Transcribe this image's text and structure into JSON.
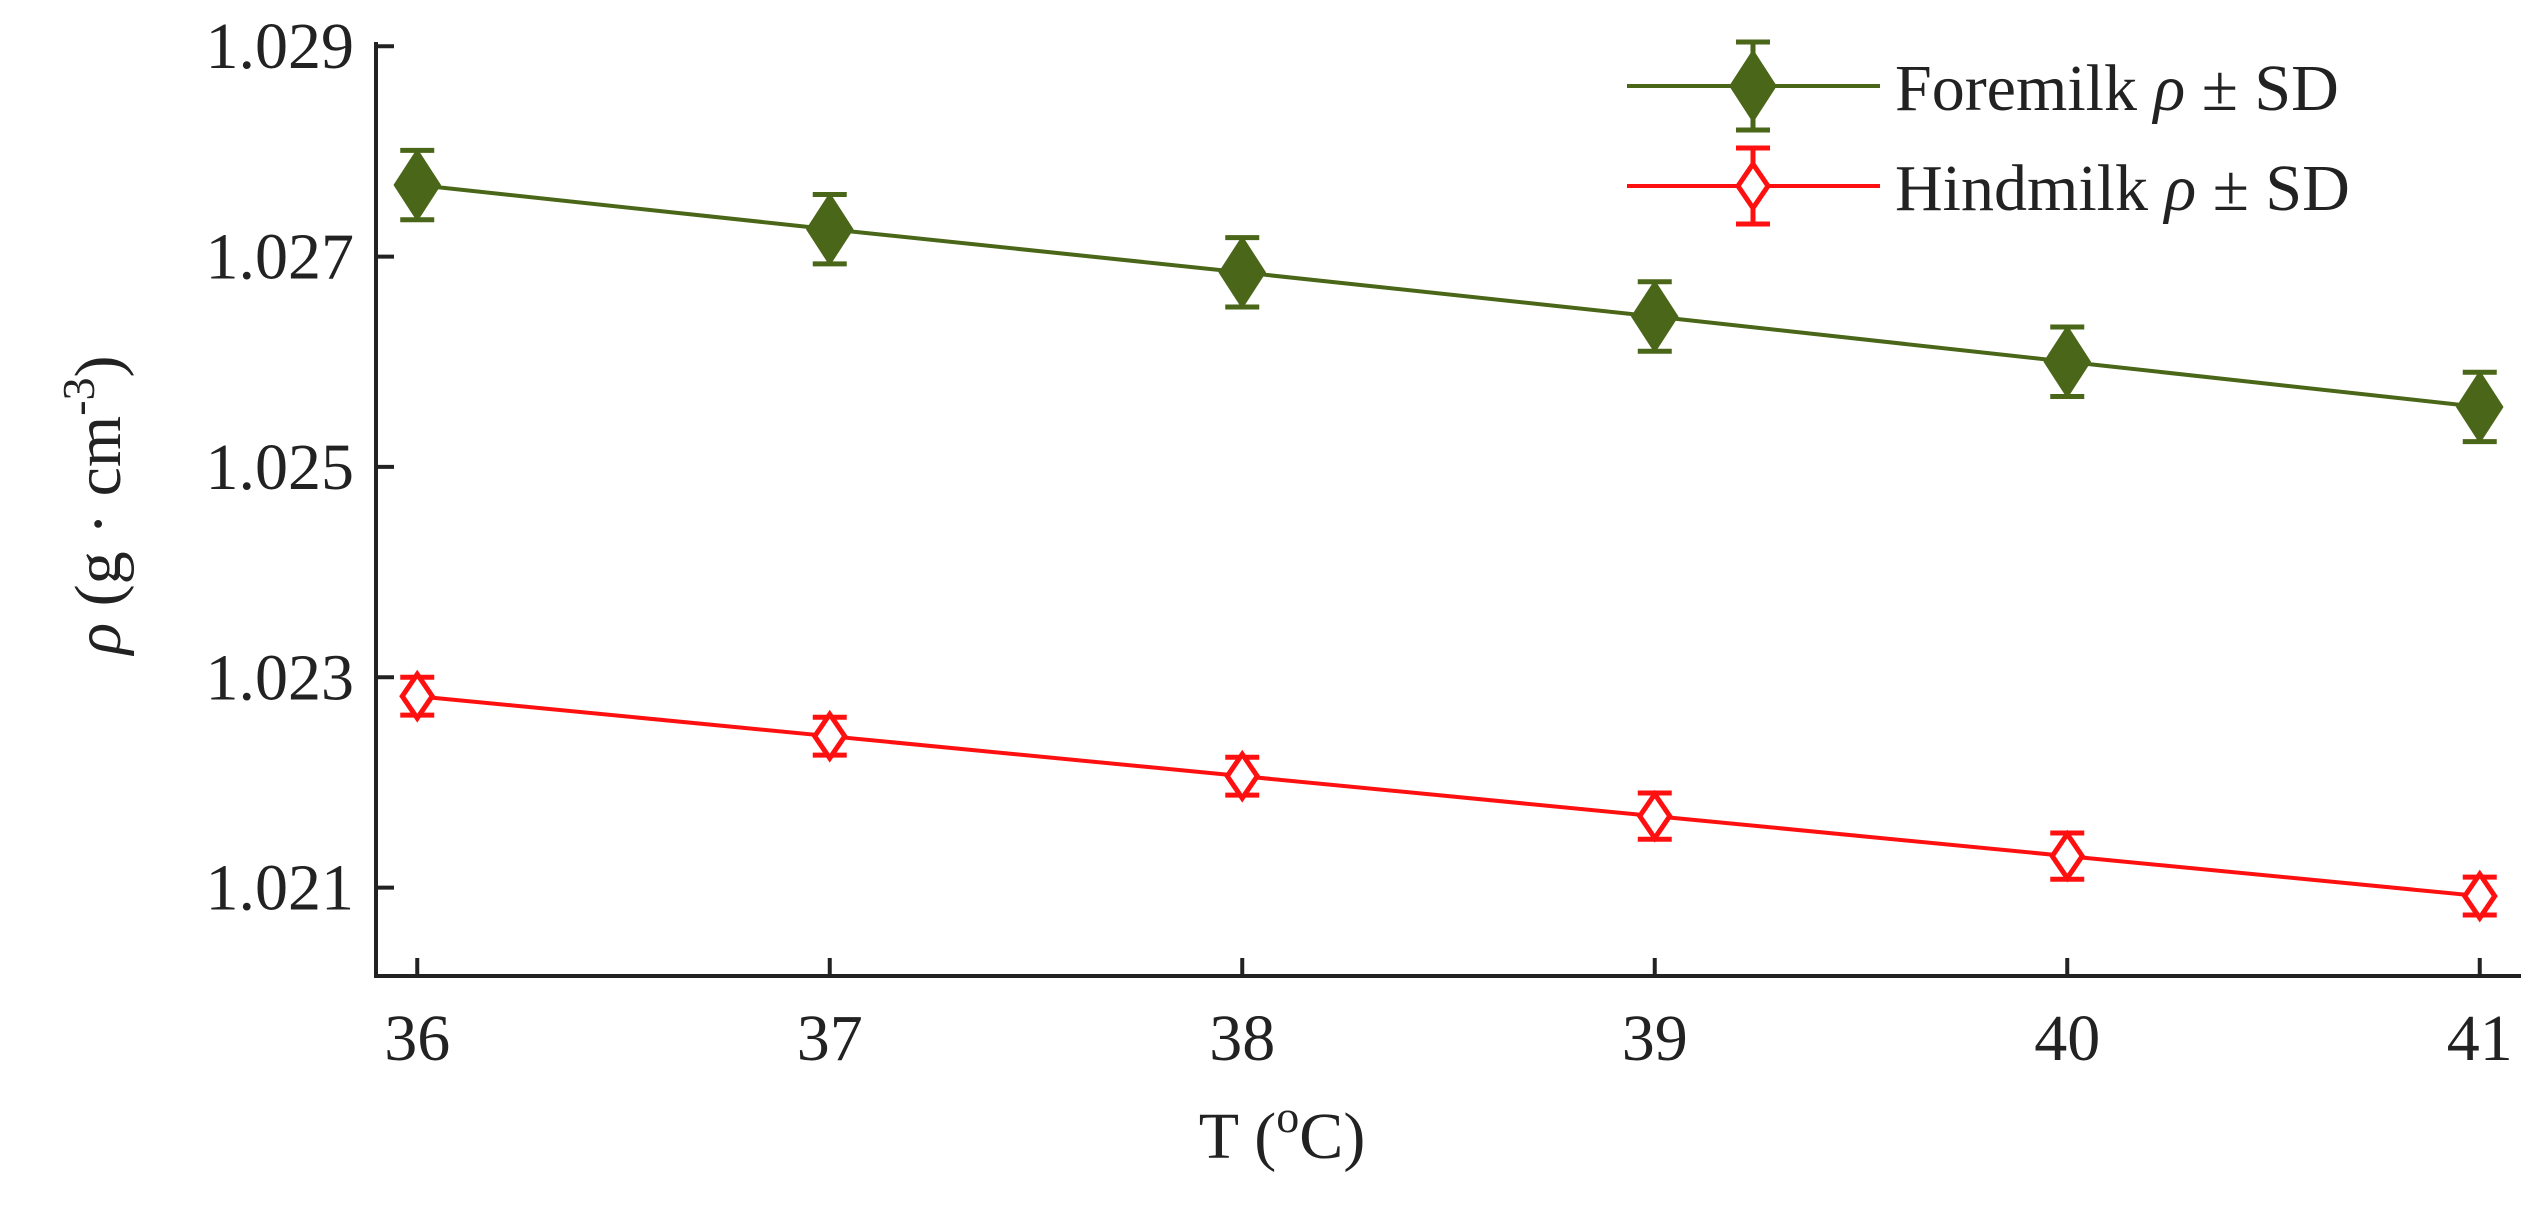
{
  "chart_data": {
    "type": "line",
    "title": "",
    "xlabel": "T (oC)",
    "xlabel_main": "T (",
    "xlabel_sup": "o",
    "xlabel_unit": "C)",
    "ylabel": "ρ (g · cm-3)",
    "ylabel_symbol": "ρ",
    "ylabel_main": "(g · cm",
    "ylabel_sup": "-3",
    "ylabel_close": ")",
    "x": [
      36,
      37,
      38,
      39,
      40,
      41
    ],
    "xticks": [
      "36",
      "37",
      "38",
      "39",
      "40",
      "41"
    ],
    "yticks": [
      "1.021",
      "1.023",
      "1.025",
      "1.027",
      "1.029"
    ],
    "ytick_values": [
      1.021,
      1.023,
      1.025,
      1.027,
      1.029
    ],
    "xlim": [
      35.9,
      41.1
    ],
    "ylim": [
      1.02016,
      1.02904
    ],
    "grid": false,
    "legend_position": "top-right",
    "series": [
      {
        "name": "Foremilk ρ ± SD",
        "legend_label": "Foremilk",
        "values": [
          1.02768,
          1.02726,
          1.02685,
          1.02643,
          1.026,
          1.02557
        ],
        "sd": [
          0.00033,
          0.00033,
          0.00033,
          0.00033,
          0.00033,
          0.00033
        ],
        "color": "#4a6618",
        "marker": "diamond-filled"
      },
      {
        "name": "Hindmilk ρ ± SD",
        "legend_label": "Hindmilk",
        "values": [
          1.02282,
          1.02244,
          1.02206,
          1.02168,
          1.0213,
          1.02092
        ],
        "sd": [
          0.00018,
          0.00018,
          0.00018,
          0.00022,
          0.00022,
          0.00018
        ],
        "color": "#ff1010",
        "marker": "diamond-open"
      }
    ],
    "legend_suffix_symbol": "ρ",
    "legend_suffix": "± SD"
  }
}
